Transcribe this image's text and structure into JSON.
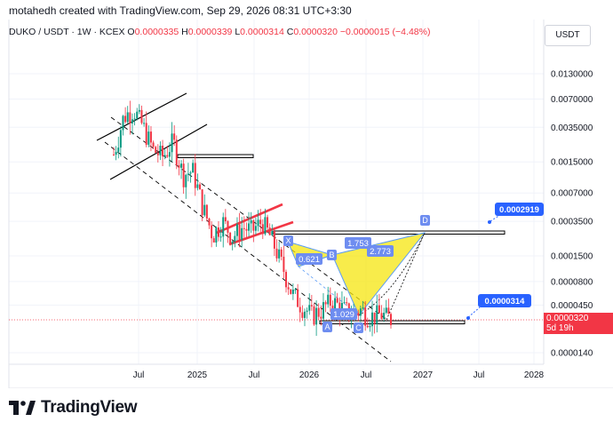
{
  "header": {
    "attribution": "motahedh created with TradingView.com, Sep 29, 2026 08:31 UTC+3:30"
  },
  "legend": {
    "symbol": "DUKO / USDT · 1W · KCEX",
    "open_label": "O",
    "open": "0.0000335",
    "high_label": "H",
    "high": "0.0000339",
    "low_label": "L",
    "low": "0.0000314",
    "close_label": "C",
    "close": "0.0000320",
    "change": "−0.0000015 (−4.48%)"
  },
  "currency_button": "USDT",
  "price_axis": {
    "scale": "log",
    "ticks": [
      "0.0130000",
      "0.0070000",
      "0.0035000",
      "0.0015000",
      "0.0007000",
      "0.0003500",
      "0.0001500",
      "0.0000800",
      "0.0000450",
      "0.0000140"
    ],
    "current_price": "0.0000320",
    "countdown": "5d 19h"
  },
  "time_axis": {
    "ticks": [
      "Jul",
      "2025",
      "Jul",
      "2026",
      "Jul",
      "2027",
      "Jul",
      "2028"
    ]
  },
  "annotations": {
    "target_high": "0.0002919",
    "target_low": "0.0000314",
    "pattern_points": [
      "X",
      "A",
      "B",
      "C",
      "D"
    ],
    "ratios": [
      "0.621",
      "1.753",
      "2.773",
      "1.029"
    ]
  },
  "colors": {
    "up": "#089981",
    "down": "#f23645",
    "pattern_fill": "#f5e50f",
    "label_blue": "#2962ff",
    "point_bg": "#6e8df0"
  },
  "chart_data": {
    "type": "candlestick",
    "title": "DUKO / USDT · 1W · KCEX",
    "xlabel": "",
    "ylabel": "",
    "y_scale": "log",
    "ylim": [
      1.1e-05,
      0.02
    ],
    "x_ticks": [
      "Jul",
      "2025",
      "Jul",
      "2026",
      "Jul",
      "2027",
      "Jul",
      "2028"
    ],
    "y_ticks": [
      0.013,
      0.007,
      0.0035,
      0.0015,
      0.0007,
      0.00035,
      0.00015,
      8e-05,
      4.5e-05,
      1.4e-05
    ],
    "last_candle": {
      "open": 3.35e-05,
      "high": 3.39e-05,
      "low": 3.14e-05,
      "close": 3.2e-05,
      "change": -1.5e-06,
      "change_pct": -4.48
    },
    "horizontal_levels": [
      0.0002919,
      3.14e-05
    ],
    "approx_price_path": [
      {
        "date": "2024-05",
        "price": 0.0018
      },
      {
        "date": "2024-06",
        "price": 0.0045
      },
      {
        "date": "2024-07",
        "price": 0.0055
      },
      {
        "date": "2024-08",
        "price": 0.0035
      },
      {
        "date": "2024-09",
        "price": 0.002
      },
      {
        "date": "2024-10",
        "price": 0.0017
      },
      {
        "date": "2024-11",
        "price": 0.0025
      },
      {
        "date": "2024-12",
        "price": 0.0011
      },
      {
        "date": "2025-01",
        "price": 0.0012
      },
      {
        "date": "2025-02",
        "price": 0.0005
      },
      {
        "date": "2025-03",
        "price": 0.00025
      },
      {
        "date": "2025-04",
        "price": 0.00035
      },
      {
        "date": "2025-05",
        "price": 0.00024
      },
      {
        "date": "2025-06",
        "price": 0.0003
      },
      {
        "date": "2025-07",
        "price": 0.00028
      },
      {
        "date": "2025-08",
        "price": 0.00035
      },
      {
        "date": "2025-09",
        "price": 0.00022
      },
      {
        "date": "2025-10",
        "price": 0.00012
      },
      {
        "date": "2025-11",
        "price": 6e-05
      },
      {
        "date": "2025-12",
        "price": 4.5e-05
      },
      {
        "date": "2026-01",
        "price": 3.5e-05
      },
      {
        "date": "2026-02",
        "price": 4e-05
      },
      {
        "date": "2026-03",
        "price": 5e-05
      },
      {
        "date": "2026-04",
        "price": 4.2e-05
      },
      {
        "date": "2026-05",
        "price": 3.6e-05
      },
      {
        "date": "2026-06",
        "price": 4e-05
      },
      {
        "date": "2026-07",
        "price": 3.4e-05
      },
      {
        "date": "2026-08",
        "price": 3.6e-05
      },
      {
        "date": "2026-09",
        "price": 3.2e-05
      }
    ]
  },
  "brand": {
    "name": "TradingView"
  }
}
